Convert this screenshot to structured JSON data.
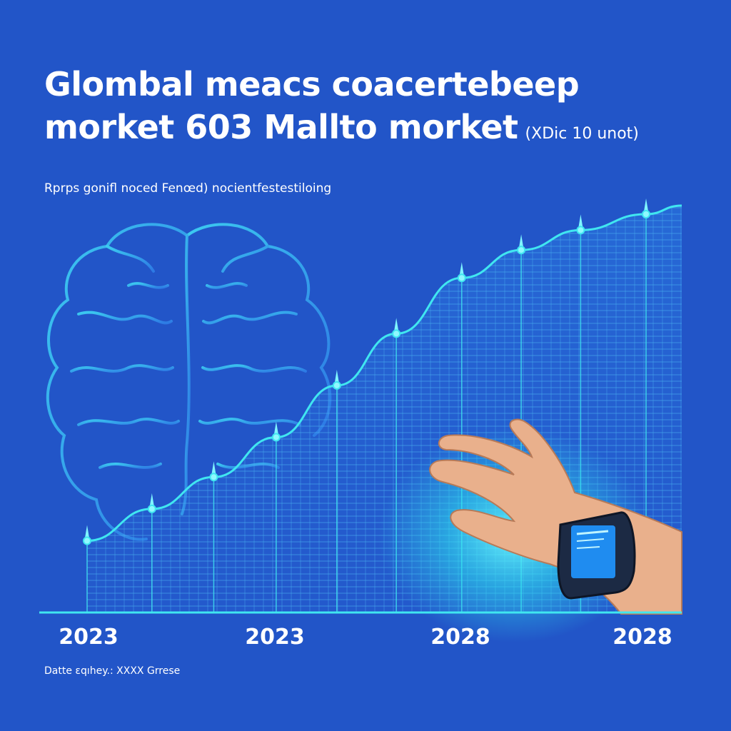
{
  "header": {
    "title_line1": "Glombal meacs coacertebeep",
    "title_line2": "morket 603  Mallto morket",
    "unit": "(XDic 10 unot)",
    "subtitle": "Rprps gonifl noced Fenœd) nocientfestestiloing"
  },
  "footer": {
    "source": "Datte εqıhey.:  XXXX Grrese"
  },
  "colors": {
    "background": "#2255c8",
    "line": "#40e6f0",
    "grid": "#4ab0f0",
    "text": "#ffffff"
  },
  "chart_data": {
    "type": "area",
    "title": "Glombal meacs coacertebeep morket 603  Mallto morket",
    "unit_label": "(XDic 10 unot)",
    "x_tick_labels": [
      "2023",
      "2023",
      "2028",
      "2028"
    ],
    "xlim": [
      0,
      1
    ],
    "ylim": [
      0,
      100
    ],
    "points": [
      {
        "x": 0.0,
        "y": 18
      },
      {
        "x": 0.109,
        "y": 26
      },
      {
        "x": 0.213,
        "y": 34
      },
      {
        "x": 0.318,
        "y": 44
      },
      {
        "x": 0.42,
        "y": 57
      },
      {
        "x": 0.52,
        "y": 70
      },
      {
        "x": 0.63,
        "y": 84
      },
      {
        "x": 0.73,
        "y": 91
      },
      {
        "x": 0.83,
        "y": 96
      },
      {
        "x": 0.94,
        "y": 100
      }
    ],
    "grid": true
  }
}
